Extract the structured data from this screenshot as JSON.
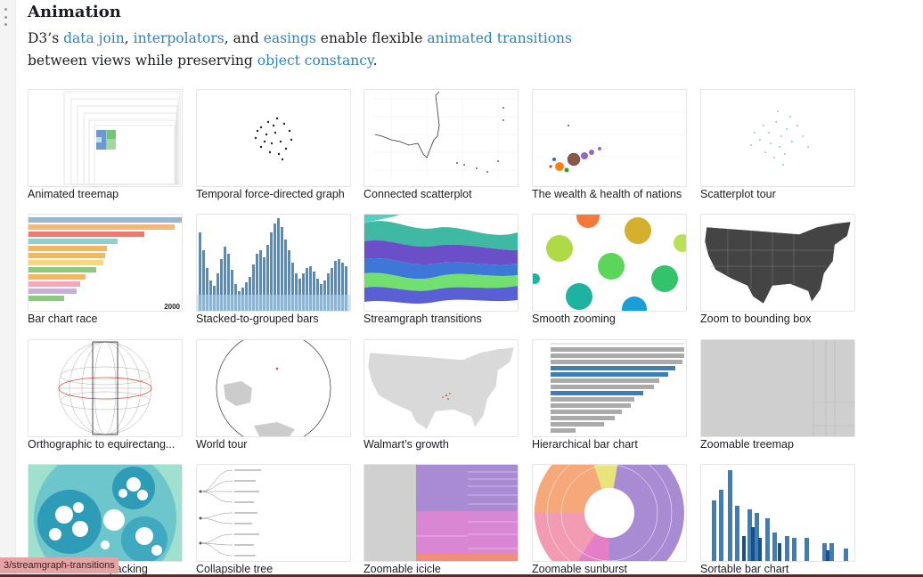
{
  "section": {
    "title": "Animation",
    "intro": {
      "t1": "D3’s ",
      "l1": "data join",
      "t2": ", ",
      "l2": "interpolators",
      "t3": ", and ",
      "l3": "easings",
      "t4": " enable flexible ",
      "l4": "animated transitions",
      "t5": "between views while preserving ",
      "l5": "object constancy",
      "t6": "."
    }
  },
  "cards": [
    {
      "label": "Animated treemap",
      "icon": "treemap-thumbnail"
    },
    {
      "label": "Temporal force-directed graph",
      "icon": "force-graph-thumbnail"
    },
    {
      "label": "Connected scatterplot",
      "icon": "connected-scatter-thumbnail"
    },
    {
      "label": "The wealth & health of nations",
      "icon": "bubble-chart-thumbnail"
    },
    {
      "label": "Scatterplot tour",
      "icon": "scatter-tour-thumbnail"
    },
    {
      "label": "Bar chart race",
      "icon": "bar-race-thumbnail",
      "thumb_text": "2000"
    },
    {
      "label": "Stacked-to-grouped bars",
      "icon": "stacked-bars-thumbnail"
    },
    {
      "label": "Streamgraph transitions",
      "icon": "streamgraph-thumbnail"
    },
    {
      "label": "Smooth zooming",
      "icon": "circles-thumbnail"
    },
    {
      "label": "Zoom to bounding box",
      "icon": "us-states-map-thumbnail"
    },
    {
      "label": "Orthographic to equirectang...",
      "icon": "globe-thumbnail"
    },
    {
      "label": "World tour",
      "icon": "world-globe-thumbnail"
    },
    {
      "label": "Walmart’s growth",
      "icon": "us-map-thumbnail"
    },
    {
      "label": "Hierarchical bar chart",
      "icon": "hbar-thumbnail"
    },
    {
      "label": "Zoomable treemap",
      "icon": "zoom-treemap-thumbnail"
    },
    {
      "label": "Zoomable circle packing",
      "icon": "circle-pack-thumbnail"
    },
    {
      "label": "Collapsible tree",
      "icon": "tree-thumbnail"
    },
    {
      "label": "Zoomable icicle",
      "icon": "icicle-thumbnail"
    },
    {
      "label": "Zoomable sunburst",
      "icon": "sunburst-thumbnail"
    },
    {
      "label": "Sortable bar chart",
      "icon": "sortable-bars-thumbnail"
    }
  ],
  "status_url": "3/streamgraph-transitions",
  "colors": {
    "link": "#3182bd",
    "bar_blue": "#3c7eb8",
    "sunburst_purple": "#a98bd4"
  }
}
